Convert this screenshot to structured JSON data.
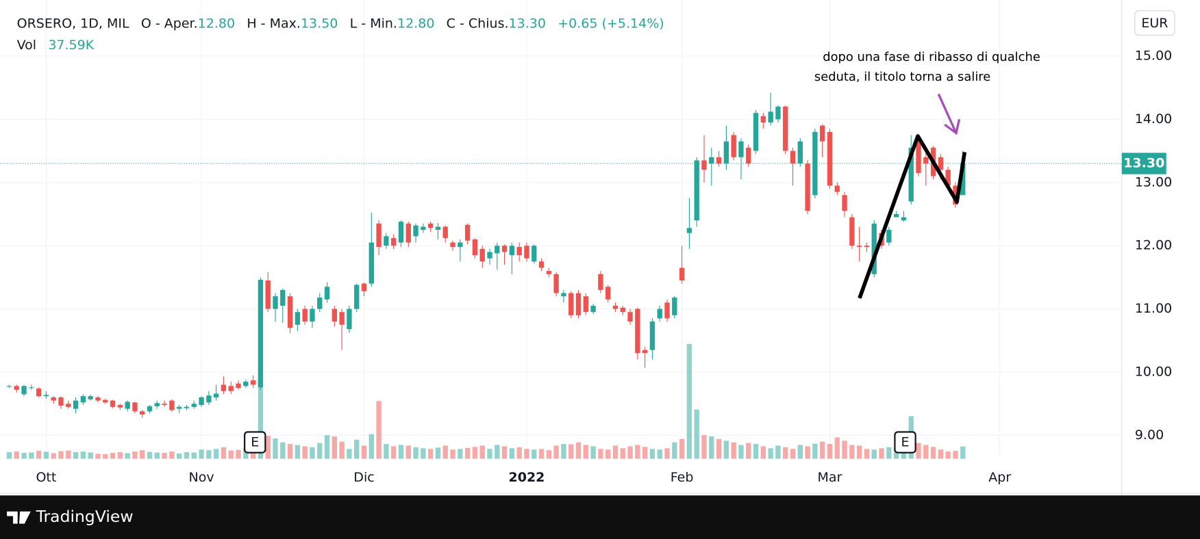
{
  "chart_data": {
    "type": "candlestick",
    "title": "ORSERO, 1D, MIL",
    "legend_fields": [
      {
        "label": "O - Aper.",
        "value": "12.80"
      },
      {
        "label": "H - Max.",
        "value": "13.50"
      },
      {
        "label": "L - Min.",
        "value": "12.80"
      },
      {
        "label": "C - Chius.",
        "value": "13.30"
      }
    ],
    "change": "+0.65 (+5.14%)",
    "volume_label": "Vol",
    "volume_value": "37.59K",
    "currency": "EUR",
    "last_price_label": "13.30",
    "brand": "TradingView",
    "events": [
      "E",
      "E"
    ],
    "annotation": [
      "dopo una fase di ribasso di qualche",
      "seduta, il titolo torna a salire"
    ],
    "up_color": "#26a69a",
    "down_color": "#ef5350",
    "grid": true,
    "ylim": [
      8.63,
      15.79
    ],
    "yticks": [
      {
        "value": 9,
        "label": "9.00"
      },
      {
        "value": 10,
        "label": "10.00"
      },
      {
        "value": 11,
        "label": "11.00"
      },
      {
        "value": 12,
        "label": "12.00"
      },
      {
        "value": 13,
        "label": "13.00"
      },
      {
        "value": 14,
        "label": "14.00"
      },
      {
        "value": 15,
        "label": "15.00"
      }
    ],
    "categories": [
      null,
      null,
      null,
      null,
      null,
      "Ott",
      null,
      null,
      null,
      null,
      null,
      null,
      null,
      null,
      null,
      null,
      null,
      null,
      null,
      null,
      null,
      null,
      null,
      null,
      null,
      null,
      "Nov",
      null,
      null,
      null,
      null,
      null,
      null,
      null,
      null,
      null,
      null,
      null,
      null,
      null,
      null,
      null,
      null,
      null,
      null,
      null,
      null,
      null,
      "Dic",
      null,
      null,
      null,
      null,
      null,
      null,
      null,
      null,
      null,
      null,
      null,
      null,
      null,
      null,
      null,
      null,
      null,
      null,
      null,
      null,
      null,
      "2022",
      null,
      null,
      null,
      null,
      null,
      null,
      null,
      null,
      null,
      null,
      null,
      null,
      null,
      null,
      null,
      null,
      null,
      null,
      null,
      null,
      "Feb",
      null,
      null,
      null,
      null,
      null,
      null,
      null,
      null,
      null,
      null,
      null,
      null,
      null,
      null,
      null,
      null,
      null,
      null,
      null,
      "Mar",
      null,
      null,
      null,
      null,
      null,
      null,
      null,
      null,
      null,
      null,
      null,
      null,
      null,
      null,
      null,
      null,
      null,
      null,
      null,
      null,
      null,
      null,
      "Apr",
      null,
      null,
      null,
      null,
      null,
      null,
      null,
      null,
      null,
      null,
      null,
      null,
      null,
      null,
      null,
      null
    ],
    "open": [
      9.78,
      9.78,
      9.65,
      9.75,
      9.74,
      9.62,
      9.6,
      9.6,
      9.5,
      9.42,
      9.52,
      9.57,
      9.6,
      9.56,
      9.55,
      9.48,
      9.42,
      9.52,
      9.38,
      9.38,
      9.46,
      9.5,
      9.55,
      9.42,
      9.43,
      9.45,
      9.48,
      9.52,
      9.6,
      9.8,
      9.78,
      9.82,
      9.78,
      9.87,
      9.76,
      11.45,
      11.0,
      11.05,
      11.2,
      10.75,
      11.0,
      10.8,
      11.0,
      11.15,
      11.0,
      10.95,
      10.68,
      11.0,
      11.4,
      11.4,
      12.35,
      12.0,
      12.12,
      12.05,
      12.35,
      12.15,
      12.25,
      12.35,
      12.25,
      12.3,
      12.05,
      11.98,
      12.33,
      12.1,
      11.95,
      11.8,
      11.88,
      12.0,
      11.85,
      11.98,
      12.0,
      11.75,
      11.75,
      11.6,
      11.55,
      11.2,
      11.25,
      11.25,
      11.2,
      10.95,
      11.55,
      11.35,
      11.05,
      11.02,
      10.95,
      11.0,
      10.35,
      10.35,
      10.85,
      11.1,
      10.9,
      11.65,
      12.2,
      12.4,
      13.35,
      13.3,
      13.4,
      13.3,
      13.75,
      13.4,
      13.55,
      13.5,
      14.05,
      13.95,
      14.0,
      14.2,
      13.5,
      13.3,
      13.3,
      12.8,
      13.9,
      13.8,
      12.95,
      12.8,
      12.45,
      12.0,
      12.0,
      11.55,
      12.2,
      12.05,
      12.45,
      12.4,
      12.7,
      13.7,
      13.4,
      13.55,
      13.4,
      13.2,
      12.95,
      12.8,
      null,
      null,
      null,
      null,
      null,
      null,
      null,
      null,
      null,
      null,
      null,
      null,
      null,
      null,
      null,
      null,
      null,
      null,
      null,
      null,
      null
    ],
    "high": [
      9.8,
      9.8,
      9.8,
      9.8,
      9.76,
      9.7,
      9.62,
      9.62,
      9.55,
      9.6,
      9.65,
      9.64,
      9.62,
      9.58,
      9.56,
      9.5,
      9.55,
      9.53,
      9.4,
      9.48,
      9.55,
      9.55,
      9.57,
      9.48,
      9.48,
      9.55,
      9.62,
      9.7,
      9.8,
      9.93,
      9.85,
      9.87,
      9.88,
      9.95,
      11.5,
      11.58,
      11.25,
      11.32,
      11.25,
      11.0,
      11.05,
      11.05,
      11.25,
      11.42,
      11.05,
      11.0,
      11.05,
      11.4,
      11.42,
      12.52,
      12.4,
      12.2,
      12.18,
      12.4,
      12.38,
      12.35,
      12.35,
      12.38,
      12.36,
      12.32,
      12.08,
      12.1,
      12.35,
      12.12,
      12.0,
      11.95,
      12.05,
      12.02,
      12.05,
      12.05,
      12.05,
      12.02,
      11.8,
      11.65,
      11.58,
      11.3,
      11.28,
      11.3,
      11.25,
      11.08,
      11.6,
      11.38,
      11.1,
      11.05,
      11.0,
      11.02,
      10.4,
      10.85,
      11.05,
      11.15,
      11.2,
      12.0,
      12.75,
      13.4,
      13.75,
      13.55,
      13.5,
      13.9,
      13.8,
      13.7,
      13.6,
      14.15,
      14.1,
      14.42,
      14.22,
      14.22,
      13.55,
      13.7,
      13.35,
      13.85,
      13.92,
      13.85,
      13.0,
      12.85,
      12.5,
      12.3,
      12.05,
      12.4,
      12.25,
      12.3,
      12.55,
      12.55,
      13.75,
      13.75,
      13.5,
      13.58,
      13.45,
      13.25,
      13.0,
      13.5,
      null,
      null,
      null,
      null,
      null,
      null,
      null,
      null,
      null,
      null,
      null,
      null,
      null,
      null,
      null,
      null,
      null,
      null,
      null,
      null,
      null
    ],
    "low": [
      9.75,
      9.68,
      9.62,
      9.72,
      9.6,
      9.58,
      9.5,
      9.42,
      9.42,
      9.35,
      9.48,
      9.55,
      9.52,
      9.5,
      9.43,
      9.4,
      9.38,
      9.35,
      9.28,
      9.35,
      9.42,
      9.45,
      9.37,
      9.35,
      9.4,
      9.42,
      9.45,
      9.48,
      9.55,
      9.65,
      9.65,
      9.72,
      9.75,
      9.75,
      9.72,
      10.95,
      10.8,
      10.78,
      10.62,
      10.65,
      10.75,
      10.7,
      10.95,
      11.1,
      10.72,
      10.35,
      10.62,
      10.95,
      11.2,
      11.35,
      11.85,
      11.95,
      11.95,
      11.98,
      11.98,
      12.05,
      12.2,
      12.22,
      12.1,
      12.05,
      11.92,
      11.75,
      12.02,
      11.8,
      11.65,
      11.7,
      11.62,
      11.7,
      11.55,
      11.75,
      11.75,
      11.72,
      11.6,
      11.5,
      11.2,
      11.1,
      10.85,
      10.85,
      10.9,
      10.92,
      11.25,
      11.1,
      10.95,
      10.9,
      10.75,
      10.2,
      10.07,
      10.2,
      10.8,
      10.8,
      10.85,
      11.4,
      11.95,
      12.3,
      13.0,
      12.95,
      13.25,
      13.2,
      13.35,
      13.05,
      13.25,
      13.45,
      13.85,
      13.9,
      13.95,
      13.45,
      12.95,
      13.25,
      12.5,
      12.75,
      13.4,
      12.9,
      12.8,
      12.45,
      11.95,
      11.75,
      11.9,
      11.5,
      11.95,
      12.0,
      12.45,
      12.38,
      12.65,
      13.1,
      12.95,
      13.05,
      13.05,
      12.9,
      12.6,
      12.8,
      null,
      null,
      null,
      null,
      null,
      null,
      null,
      null,
      null,
      null,
      null,
      null,
      null,
      null,
      null,
      null,
      null,
      null,
      null,
      null,
      null
    ],
    "close": [
      9.78,
      9.72,
      9.78,
      9.76,
      9.62,
      9.64,
      9.55,
      9.47,
      9.45,
      9.55,
      9.62,
      9.62,
      9.55,
      9.52,
      9.45,
      9.44,
      9.53,
      9.38,
      9.33,
      9.46,
      9.51,
      9.48,
      9.4,
      9.45,
      9.45,
      9.5,
      9.6,
      9.63,
      9.66,
      9.7,
      9.7,
      9.75,
      9.85,
      9.8,
      11.46,
      11.0,
      11.2,
      11.3,
      10.7,
      10.95,
      10.8,
      11.0,
      11.18,
      11.35,
      10.8,
      10.75,
      11.0,
      11.38,
      11.28,
      12.05,
      11.98,
      12.15,
      12.0,
      12.38,
      12.05,
      12.32,
      12.3,
      12.28,
      12.3,
      12.12,
      11.98,
      12.05,
      12.08,
      11.85,
      11.75,
      11.9,
      12.0,
      11.9,
      12.0,
      11.85,
      11.8,
      12.0,
      11.65,
      11.55,
      11.25,
      11.25,
      10.9,
      10.9,
      10.95,
      11.05,
      11.3,
      11.15,
      11.0,
      10.95,
      10.8,
      10.3,
      10.3,
      10.8,
      11.0,
      10.85,
      11.18,
      11.45,
      12.28,
      13.35,
      13.2,
      13.4,
      13.3,
      13.65,
      13.4,
      13.65,
      13.3,
      14.1,
      13.95,
      14.12,
      14.2,
      13.5,
      13.3,
      13.65,
      12.55,
      13.8,
      13.65,
      12.95,
      12.85,
      12.55,
      12.0,
      11.98,
      11.98,
      12.35,
      12.0,
      12.25,
      12.5,
      12.45,
      13.55,
      13.15,
      13.3,
      13.1,
      13.2,
      12.95,
      12.65,
      13.3,
      null,
      null,
      null,
      null,
      null,
      null,
      null,
      null,
      null,
      null,
      null,
      null,
      null,
      null,
      null,
      null,
      null,
      null,
      null,
      null,
      null
    ],
    "volume": [
      20000,
      22000,
      18000,
      19000,
      24000,
      21000,
      17000,
      23000,
      25000,
      20000,
      22000,
      19000,
      15000,
      14000,
      18000,
      20000,
      17000,
      22000,
      26000,
      21000,
      19000,
      18000,
      22000,
      16000,
      20000,
      19000,
      28000,
      26000,
      30000,
      35000,
      25000,
      27000,
      32000,
      38000,
      242000,
      70000,
      62000,
      50000,
      45000,
      42000,
      38000,
      35000,
      48000,
      72000,
      68000,
      52000,
      30000,
      58000,
      40000,
      75000,
      176000,
      45000,
      38000,
      42000,
      40000,
      35000,
      32000,
      30000,
      34000,
      40000,
      28000,
      30000,
      33000,
      36000,
      40000,
      30000,
      42000,
      38000,
      32000,
      35000,
      30000,
      28000,
      30000,
      26000,
      40000,
      45000,
      44000,
      50000,
      42000,
      38000,
      30000,
      28000,
      40000,
      32000,
      38000,
      42000,
      36000,
      30000,
      28000,
      32000,
      50000,
      60000,
      350000,
      150000,
      72000,
      68000,
      60000,
      55000,
      50000,
      42000,
      48000,
      45000,
      38000,
      32000,
      40000,
      35000,
      30000,
      42000,
      38000,
      46000,
      52000,
      45000,
      65000,
      55000,
      42000,
      40000,
      30000,
      28000,
      32000,
      35000,
      30000,
      45000,
      130000,
      48000,
      42000,
      36000,
      28000,
      22000,
      24000,
      37590,
      null,
      null,
      null,
      null,
      null,
      null,
      null,
      null,
      null,
      null,
      null,
      null,
      null,
      null,
      null,
      null,
      null,
      null,
      null,
      null,
      null
    ]
  }
}
